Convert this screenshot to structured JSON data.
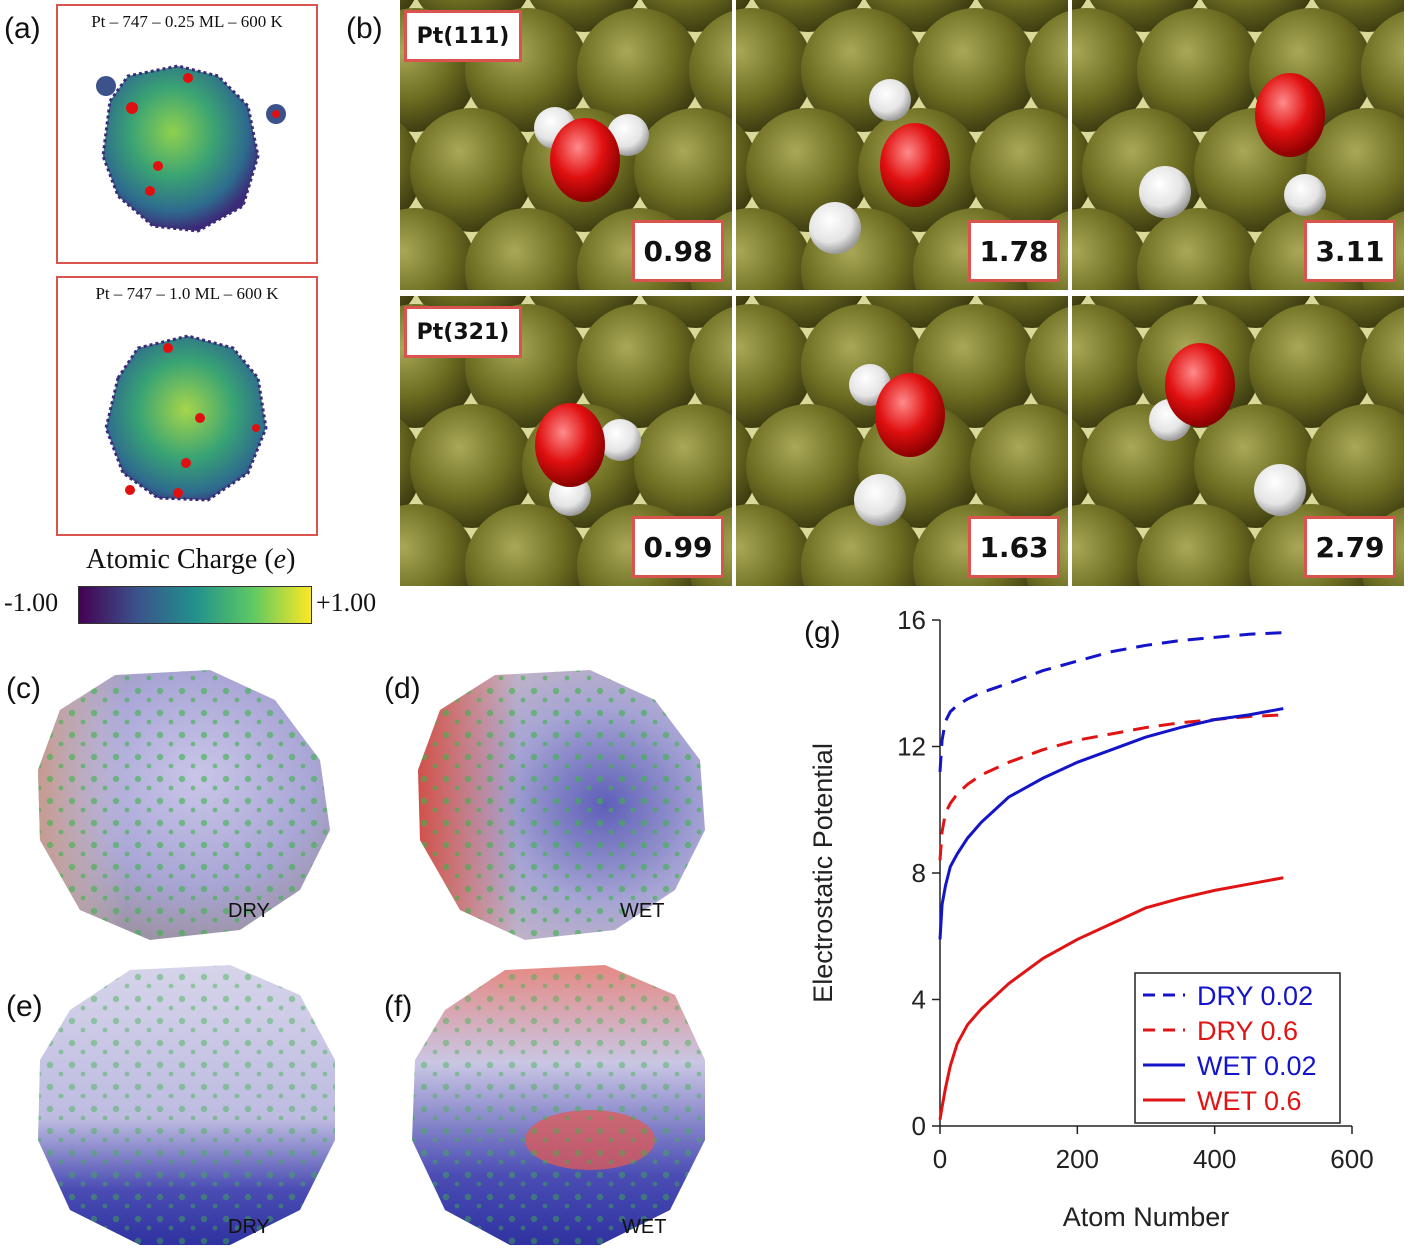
{
  "panels": {
    "a": "(a)",
    "b": "(b)",
    "c": "(c)",
    "d": "(d)",
    "e": "(e)",
    "f": "(f)",
    "g": "(g)"
  },
  "panel_a": {
    "top_title": "Pt – 747  –  0.25 ML – 600 K",
    "bottom_title": "Pt – 747  –  1.0 ML – 600 K",
    "colorbar": {
      "title_prefix": "Atomic Charge (",
      "title_var": "e",
      "title_suffix": ")",
      "min_label": "-1.00",
      "max_label": "+1.00",
      "colors": [
        "#440154",
        "#3b528b",
        "#21918c",
        "#5ec962",
        "#fde725"
      ]
    }
  },
  "panel_b": {
    "rows": [
      {
        "surface": "Pt(111)",
        "values": [
          "0.98",
          "1.78",
          "3.11"
        ]
      },
      {
        "surface": "Pt(321)",
        "values": [
          "0.99",
          "1.63",
          "2.79"
        ]
      }
    ],
    "colors": {
      "pt": "#6e6e22",
      "oxygen": "#e01010",
      "hydrogen": "#eeeeee",
      "box_border": "#d9534f"
    }
  },
  "panels_cdef": {
    "c_tag": "DRY",
    "d_tag": "WET",
    "e_tag": "DRY",
    "f_tag": "WET"
  },
  "chart_data": {
    "type": "line",
    "xlabel": "Atom Number",
    "ylabel": "Electrostatic Potential",
    "xlim": [
      0,
      600
    ],
    "ylim": [
      0,
      16
    ],
    "xticks": [
      0,
      200,
      400,
      600
    ],
    "yticks": [
      0,
      4,
      8,
      12,
      16
    ],
    "legend_position": "bottom-right",
    "series": [
      {
        "name": "DRY 0.02",
        "color": "#1414c8",
        "dash": true,
        "x": [
          0,
          3,
          8,
          15,
          25,
          40,
          60,
          100,
          150,
          200,
          250,
          300,
          350,
          400,
          450,
          500
        ],
        "y": [
          11.2,
          12.2,
          12.8,
          13.1,
          13.3,
          13.5,
          13.7,
          14.0,
          14.4,
          14.7,
          15.0,
          15.2,
          15.35,
          15.45,
          15.55,
          15.6
        ]
      },
      {
        "name": "DRY 0.6",
        "color": "#e01414",
        "dash": true,
        "x": [
          0,
          3,
          8,
          15,
          25,
          40,
          60,
          100,
          150,
          200,
          250,
          300,
          350,
          400,
          450,
          500
        ],
        "y": [
          8.4,
          9.3,
          9.9,
          10.2,
          10.5,
          10.8,
          11.1,
          11.5,
          11.9,
          12.2,
          12.4,
          12.6,
          12.75,
          12.85,
          12.95,
          13.0
        ]
      },
      {
        "name": "WET 0.02",
        "color": "#1414c8",
        "dash": false,
        "x": [
          0,
          3,
          8,
          15,
          25,
          40,
          60,
          100,
          150,
          200,
          250,
          300,
          350,
          400,
          450,
          500
        ],
        "y": [
          5.9,
          7.0,
          7.6,
          8.2,
          8.6,
          9.1,
          9.6,
          10.4,
          11.0,
          11.5,
          11.9,
          12.3,
          12.6,
          12.85,
          13.0,
          13.2
        ]
      },
      {
        "name": "WET 0.6",
        "color": "#e01414",
        "dash": false,
        "x": [
          0,
          3,
          8,
          15,
          25,
          40,
          60,
          100,
          150,
          200,
          250,
          300,
          350,
          400,
          450,
          500
        ],
        "y": [
          0.2,
          0.6,
          1.2,
          1.9,
          2.6,
          3.2,
          3.7,
          4.5,
          5.3,
          5.9,
          6.4,
          6.9,
          7.2,
          7.45,
          7.65,
          7.85
        ]
      }
    ]
  }
}
